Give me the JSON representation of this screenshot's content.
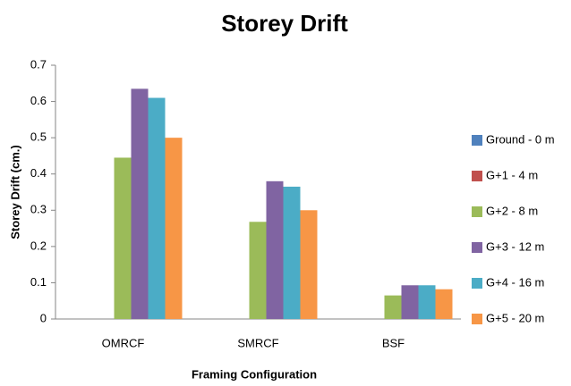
{
  "chart_data": {
    "type": "bar",
    "title": "Storey Drift",
    "xlabel": "Framing Configuration",
    "ylabel": "Storey Drift (cm.)",
    "categories": [
      "OMRCF",
      "SMRCF",
      "BSF"
    ],
    "series": [
      {
        "name": "Ground - 0 m",
        "color": "#4f81bd",
        "values": [
          0,
          0,
          0
        ]
      },
      {
        "name": "G+1 - 4 m",
        "color": "#c0504d",
        "values": [
          0,
          0,
          0
        ]
      },
      {
        "name": "G+2 - 8 m",
        "color": "#9bbb59",
        "values": [
          0.445,
          0.268,
          0.065
        ]
      },
      {
        "name": "G+3 - 12 m",
        "color": "#8064a2",
        "values": [
          0.635,
          0.38,
          0.093
        ]
      },
      {
        "name": "G+4 - 16 m",
        "color": "#4bacc6",
        "values": [
          0.61,
          0.365,
          0.093
        ]
      },
      {
        "name": "G+5 - 20 m",
        "color": "#f79646",
        "values": [
          0.5,
          0.3,
          0.082
        ]
      }
    ],
    "ylim": [
      0,
      0.7
    ],
    "yticks": [
      0,
      0.1,
      0.2,
      0.3,
      0.4,
      0.5,
      0.6,
      0.7
    ],
    "grid": false,
    "legend": "right"
  }
}
